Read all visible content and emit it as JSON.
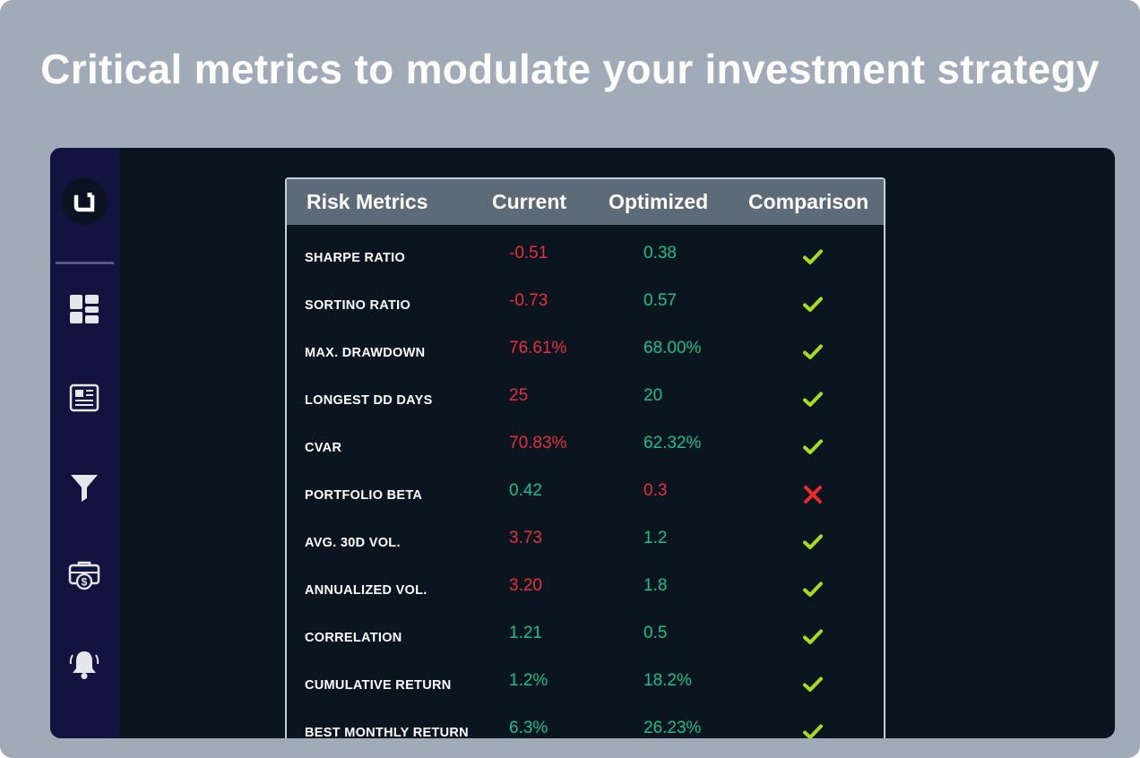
{
  "headline": "Critical metrics to modulate your investment strategy",
  "colors": {
    "background": "#a1aab7",
    "screen": "#0a1520",
    "sidebar": "#13133f",
    "table_header": "#5d6a78",
    "bad": "#e8303b",
    "good": "#19c08a",
    "check": "#a6dd1c",
    "cross": "#f0282b"
  },
  "sidebar": {
    "logo": "u-logo-icon",
    "items": [
      {
        "name": "dashboard-icon"
      },
      {
        "name": "newspaper-icon"
      },
      {
        "name": "filter-icon"
      },
      {
        "name": "briefcase-dollar-icon"
      },
      {
        "name": "bell-icon"
      }
    ]
  },
  "table": {
    "headers": {
      "metric": "Risk Metrics",
      "current": "Current",
      "optimized": "Optimized",
      "comparison": "Comparison"
    },
    "rows": [
      {
        "metric": "SHARPE RATIO",
        "current": "-0.51",
        "current_status": "bad",
        "optimized": "0.38",
        "optimized_status": "good",
        "comparison": "check"
      },
      {
        "metric": "SORTINO RATIO",
        "current": "-0.73",
        "current_status": "bad",
        "optimized": "0.57",
        "optimized_status": "good",
        "comparison": "check"
      },
      {
        "metric": "MAX. DRAWDOWN",
        "current": "76.61%",
        "current_status": "bad",
        "optimized": "68.00%",
        "optimized_status": "good",
        "comparison": "check"
      },
      {
        "metric": "LONGEST DD DAYS",
        "current": "25",
        "current_status": "bad",
        "optimized": "20",
        "optimized_status": "good",
        "comparison": "check"
      },
      {
        "metric": "CVAR",
        "current": "70.83%",
        "current_status": "bad",
        "optimized": "62.32%",
        "optimized_status": "good",
        "comparison": "check"
      },
      {
        "metric": "PORTFOLIO BETA",
        "current": "0.42",
        "current_status": "good",
        "optimized": "0.3",
        "optimized_status": "bad",
        "comparison": "cross"
      },
      {
        "metric": "AVG. 30D VOL.",
        "current": "3.73",
        "current_status": "bad",
        "optimized": "1.2",
        "optimized_status": "good",
        "comparison": "check"
      },
      {
        "metric": "ANNUALIZED VOL.",
        "current": "3.20",
        "current_status": "bad",
        "optimized": "1.8",
        "optimized_status": "good",
        "comparison": "check"
      },
      {
        "metric": "CORRELATION",
        "current": "1.21",
        "current_status": "good",
        "optimized": "0.5",
        "optimized_status": "good",
        "comparison": "check"
      },
      {
        "metric": "CUMULATIVE RETURN",
        "current": "1.2%",
        "current_status": "good",
        "optimized": "18.2%",
        "optimized_status": "good",
        "comparison": "check"
      },
      {
        "metric": "BEST MONTHLY RETURN",
        "current": "6.3%",
        "current_status": "good",
        "optimized": "26.23%",
        "optimized_status": "good",
        "comparison": "check"
      }
    ]
  }
}
